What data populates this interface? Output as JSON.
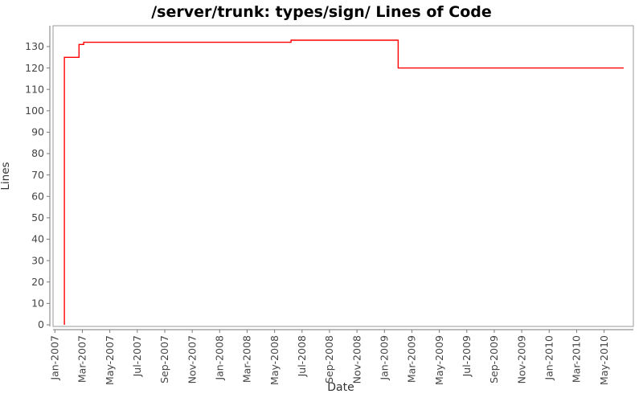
{
  "chart_data": {
    "type": "line",
    "subtype": "step",
    "title": "/server/trunk: types/sign/ Lines of Code",
    "xlabel": "Date",
    "ylabel": "Lines",
    "grid": false,
    "legend_position": "none",
    "ylim": [
      0,
      140
    ],
    "y_tick_step": 10,
    "x_range": [
      "2006-12-28",
      "2010-07-05"
    ],
    "x_ticks": [
      "Jan-2007",
      "Mar-2007",
      "May-2007",
      "Jul-2007",
      "Sep-2007",
      "Nov-2007",
      "Jan-2008",
      "Mar-2008",
      "May-2008",
      "Jul-2008",
      "Sep-2008",
      "Nov-2008",
      "Jan-2009",
      "Mar-2009",
      "May-2009",
      "Jul-2009",
      "Sep-2009",
      "Nov-2009",
      "Jan-2010",
      "Mar-2010",
      "May-2010"
    ],
    "y_ticks": [
      "0",
      "10",
      "20",
      "30",
      "40",
      "50",
      "60",
      "70",
      "80",
      "90",
      "100",
      "110",
      "120",
      "130"
    ],
    "series": [
      {
        "name": "Lines of Code",
        "color": "#ff0000",
        "step_points": [
          {
            "date": "2007-01-22",
            "value": 0
          },
          {
            "date": "2007-01-22",
            "value": 125
          },
          {
            "date": "2007-02-24",
            "value": 125
          },
          {
            "date": "2007-02-24",
            "value": 131
          },
          {
            "date": "2007-03-04",
            "value": 131
          },
          {
            "date": "2007-03-04",
            "value": 132
          },
          {
            "date": "2008-06-07",
            "value": 132
          },
          {
            "date": "2008-06-07",
            "value": 133
          },
          {
            "date": "2009-02-01",
            "value": 133
          },
          {
            "date": "2009-02-01",
            "value": 120
          },
          {
            "date": "2010-06-14",
            "value": 120
          }
        ]
      }
    ],
    "colors": {
      "line": "#ff0000",
      "plot_border": "#9a9a9a",
      "axis_line": "#7a7a7a",
      "tick_label": "#444444",
      "title": "#000000",
      "background": "#ffffff"
    }
  }
}
